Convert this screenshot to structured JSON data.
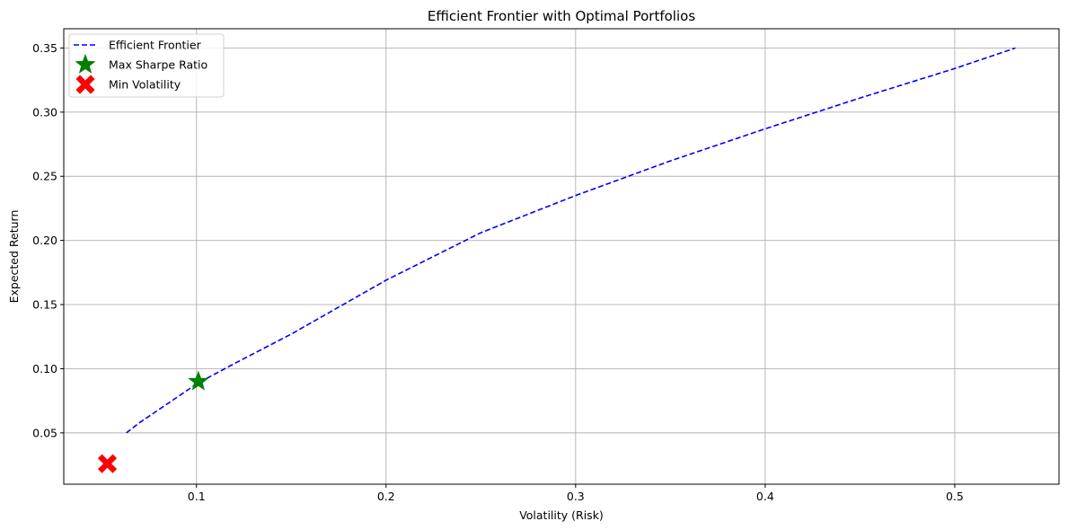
{
  "chart_data": {
    "type": "line",
    "title": "Efficient Frontier with Optimal Portfolios",
    "xlabel": "Volatility (Risk)",
    "ylabel": "Expected Return",
    "xlim": [
      0.03,
      0.555
    ],
    "ylim": [
      0.01,
      0.365
    ],
    "xticks": [
      0.1,
      0.2,
      0.3,
      0.4,
      0.5
    ],
    "xtick_labels": [
      "0.1",
      "0.2",
      "0.3",
      "0.4",
      "0.5"
    ],
    "yticks": [
      0.05,
      0.1,
      0.15,
      0.2,
      0.25,
      0.3,
      0.35
    ],
    "ytick_labels": [
      "0.05",
      "0.10",
      "0.15",
      "0.20",
      "0.25",
      "0.30",
      "0.35"
    ],
    "grid": true,
    "legend_position": "top-left",
    "series": [
      {
        "name": "Efficient Frontier",
        "style": "dashed-line",
        "color": "#0000ff",
        "x": [
          0.063,
          0.07,
          0.08,
          0.09,
          0.101,
          0.12,
          0.15,
          0.2,
          0.25,
          0.3,
          0.35,
          0.4,
          0.45,
          0.5,
          0.532
        ],
        "y": [
          0.05,
          0.058,
          0.068,
          0.078,
          0.089,
          0.104,
          0.127,
          0.169,
          0.206,
          0.235,
          0.262,
          0.287,
          0.311,
          0.334,
          0.35
        ]
      },
      {
        "name": "Max Sharpe Ratio",
        "style": "star-marker",
        "color": "#008000",
        "x": [
          0.101
        ],
        "y": [
          0.09
        ]
      },
      {
        "name": "Min Volatility",
        "style": "x-marker",
        "color": "#ff0000",
        "x": [
          0.053
        ],
        "y": [
          0.026
        ]
      }
    ]
  }
}
